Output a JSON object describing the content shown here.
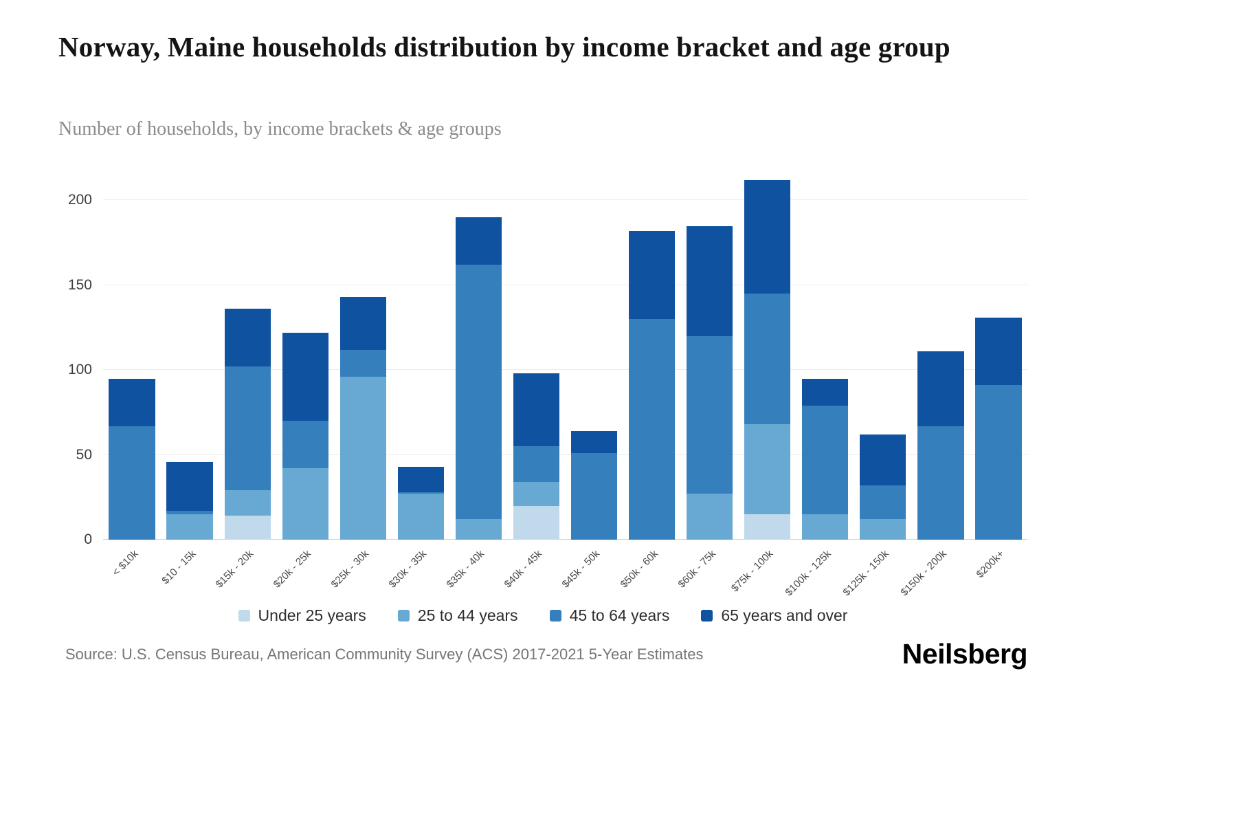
{
  "footer": {
    "source": "Source: U.S. Census Bureau, American Community Survey (ACS) 2017-2021 5-Year Estimates",
    "brand": "Neilsberg"
  },
  "chart_data": {
    "type": "bar",
    "stacked": true,
    "title": "Norway, Maine households distribution by income bracket and age group",
    "subtitle": "Number of households, by income brackets & age groups",
    "xlabel": "",
    "ylabel": "",
    "yticks": [
      0,
      50,
      100,
      150,
      200
    ],
    "ylim": [
      0,
      216
    ],
    "grid": true,
    "legend_position": "bottom",
    "categories": [
      "< $10k",
      "$10 - 15k",
      "$15k - 20k",
      "$20k - 25k",
      "$25k - 30k",
      "$30k - 35k",
      "$35k - 40k",
      "$40k - 45k",
      "$45k - 50k",
      "$50k - 60k",
      "$60k - 75k",
      "$75k - 100k",
      "$100k - 125k",
      "$125k - 150k",
      "$150k - 200k",
      "$200k+"
    ],
    "series": [
      {
        "name": "Under 25 years",
        "color": "#c0d9eb",
        "values": [
          0,
          0,
          14,
          0,
          0,
          0,
          0,
          20,
          0,
          0,
          0,
          15,
          0,
          0,
          0,
          0
        ]
      },
      {
        "name": "25 to 44 years",
        "color": "#68a9d4",
        "values": [
          0,
          15,
          15,
          42,
          96,
          27,
          12,
          14,
          0,
          0,
          27,
          53,
          15,
          12,
          0,
          0
        ]
      },
      {
        "name": "45 to 64 years",
        "color": "#3580bc",
        "values": [
          67,
          2,
          73,
          28,
          16,
          1,
          150,
          21,
          51,
          130,
          93,
          77,
          64,
          20,
          67,
          91
        ]
      },
      {
        "name": "65 years and over",
        "color": "#0e52a0",
        "values": [
          28,
          29,
          34,
          52,
          31,
          15,
          28,
          43,
          13,
          52,
          65,
          67,
          16,
          30,
          44,
          40
        ]
      }
    ],
    "totals": [
      95,
      46,
      136,
      122,
      143,
      43,
      190,
      98,
      64,
      182,
      185,
      212,
      95,
      62,
      111,
      131
    ]
  }
}
